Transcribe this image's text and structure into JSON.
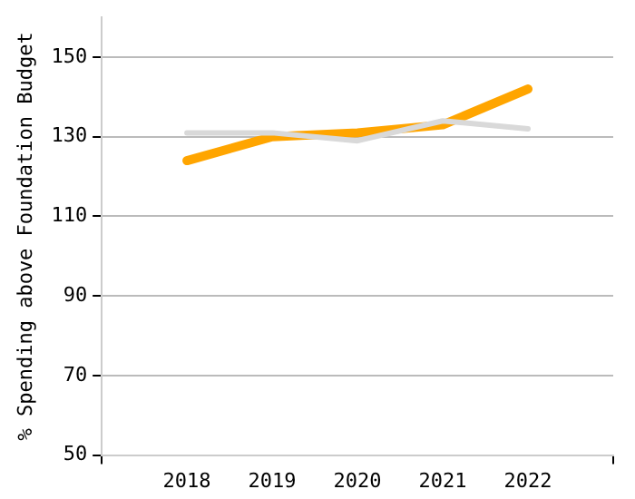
{
  "chart_data": {
    "type": "line",
    "ylabel": "% Spending above Foundation Budget",
    "categories": [
      "2018",
      "2019",
      "2020",
      "2021",
      "2022"
    ],
    "series": [
      {
        "color": "#d9d9d9",
        "values": [
          131,
          131,
          129,
          134,
          132
        ]
      },
      {
        "color": "#ffa500",
        "values": [
          124,
          130,
          131,
          133,
          142
        ]
      }
    ],
    "ylim": [
      50,
      160
    ],
    "yticks": [
      50,
      70,
      90,
      110,
      130,
      150
    ],
    "grid": "y",
    "legend": false,
    "marker": "none",
    "line_style": "solid"
  }
}
